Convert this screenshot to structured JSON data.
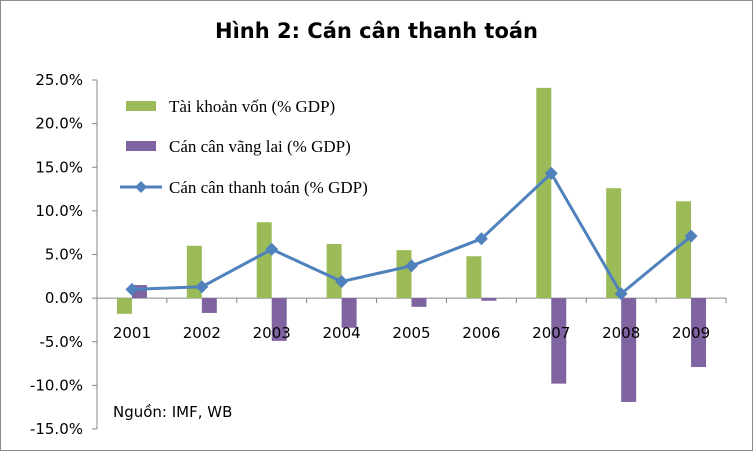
{
  "title": "Hình 2: Cán cân thanh toán",
  "source_note": "Nguồn: IMF, WB",
  "colors": {
    "capital": "#9bbb59",
    "current": "#8064a2",
    "bop": "#4f81bd"
  },
  "chart_data": {
    "type": "bar",
    "title": "Hình 2: Cán cân thanh toán",
    "categories": [
      "2001",
      "2002",
      "2003",
      "2004",
      "2005",
      "2006",
      "2007",
      "2008",
      "2009"
    ],
    "ylim": [
      -15,
      25
    ],
    "yticks": [
      -15,
      -10,
      -5,
      0,
      5,
      10,
      15,
      20,
      25
    ],
    "ytick_labels": [
      "-15.0%",
      "-10.0%",
      "-5.0%",
      "0.0%",
      "5.0%",
      "10.0%",
      "15.0%",
      "20.0%",
      "25.0%"
    ],
    "grid": false,
    "legend_position": "top-left",
    "series": [
      {
        "name": "Tài khoản vốn (% GDP)",
        "type": "bar",
        "color": "#9bbb59",
        "values": [
          -1.8,
          6.0,
          8.7,
          6.2,
          5.5,
          4.8,
          24.1,
          12.6,
          11.1
        ]
      },
      {
        "name": "Cán cân vãng lai (% GDP)",
        "type": "bar",
        "color": "#8064a2",
        "values": [
          1.5,
          -1.7,
          -4.9,
          -3.4,
          -1.0,
          -0.3,
          -9.8,
          -11.9,
          -7.9
        ]
      },
      {
        "name": "Cán cân thanh toán (% GDP)",
        "type": "line",
        "color": "#4f81bd",
        "values": [
          1.0,
          1.3,
          5.6,
          1.9,
          3.7,
          6.8,
          14.3,
          0.5,
          7.1
        ]
      }
    ]
  }
}
